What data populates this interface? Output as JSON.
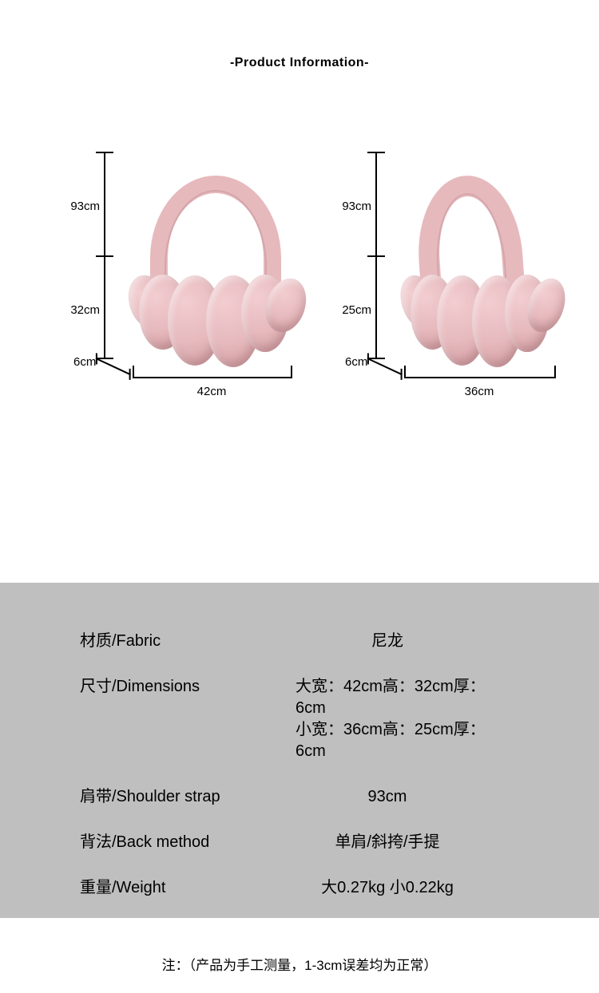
{
  "title": "-Product Information-",
  "colors": {
    "page_bg": "#ffffff",
    "panel_bg": "#bfbfbf",
    "text": "#000000",
    "ruler": "#000000",
    "bag_light": "#f2cdd0",
    "bag_mid": "#e6b9bd",
    "bag_dark": "#cf9ba0"
  },
  "diagrams": {
    "large": {
      "strap_length": "93cm",
      "height": "32cm",
      "depth": "6cm",
      "width": "42cm"
    },
    "small": {
      "strap_length": "93cm",
      "height": "25cm",
      "depth": "6cm",
      "width": "36cm"
    }
  },
  "specs": {
    "fabric": {
      "label": "材质/Fabric",
      "value": "尼龙"
    },
    "dimensions": {
      "label": "尺寸/Dimensions",
      "value": "大宽：42cm高：32cm厚：6cm\n小宽：36cm高：25cm厚：6cm"
    },
    "strap": {
      "label": "肩带/Shoulder strap",
      "value": "93cm"
    },
    "back": {
      "label": "背法/Back method",
      "value": "单肩/斜挎/手提"
    },
    "weight": {
      "label": "重量/Weight",
      "value": "大0.27kg   小0.22kg"
    }
  },
  "note": "注：（产品为手工测量，1-3cm误差均为正常）"
}
